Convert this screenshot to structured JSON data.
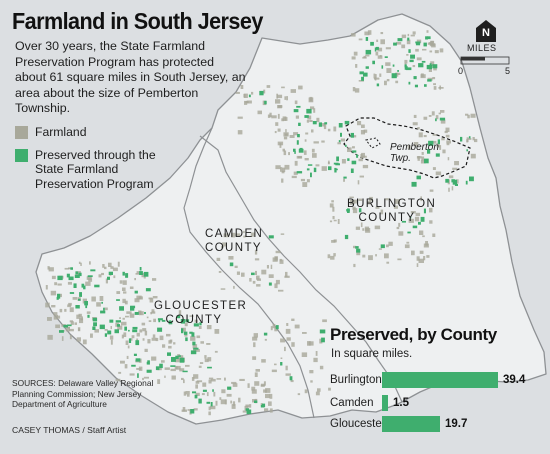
{
  "title": "Farmland in South Jersey",
  "intro": "Over 30 years, the State Farmland Preservation Program has protected about 61 square miles in South Jersey, an area about the size of Pemberton Township.",
  "legend": {
    "items": [
      {
        "label": "Farmland",
        "color": "#a8a89a"
      },
      {
        "label": "Preserved through the State Farmland Preservation Program",
        "color": "#3fae6e"
      }
    ]
  },
  "compass": {
    "letter": "N",
    "scale_label": "MILES",
    "scale_min": "0",
    "scale_max": "5"
  },
  "counties": {
    "camden": "CAMDEN COUNTY",
    "burlington": "BURLINGTON COUNTY",
    "gloucester": "GLOUCESTER COUNTY"
  },
  "township": "Pemberton Twp.",
  "bar_chart": {
    "title": "Preserved, by County",
    "subtitle": "In square miles.",
    "rows": [
      {
        "label": "Burlington",
        "value": 39.4,
        "display": "39.4"
      },
      {
        "label": "Camden",
        "value": 1.5,
        "display": "1.5"
      },
      {
        "label": "Gloucester",
        "value": 19.7,
        "display": "19.7"
      }
    ]
  },
  "colors": {
    "background": "#dcdfe2",
    "land": "#eef0f1",
    "border": "#8e9194",
    "farmland": "#a8a89a",
    "preserved": "#3fae6e"
  },
  "sources": "SOURCES: Delaware Valley Regional Planning Commission; New Jersey Department of Agriculture",
  "credit": "CASEY THOMAS / Staff Artist"
}
